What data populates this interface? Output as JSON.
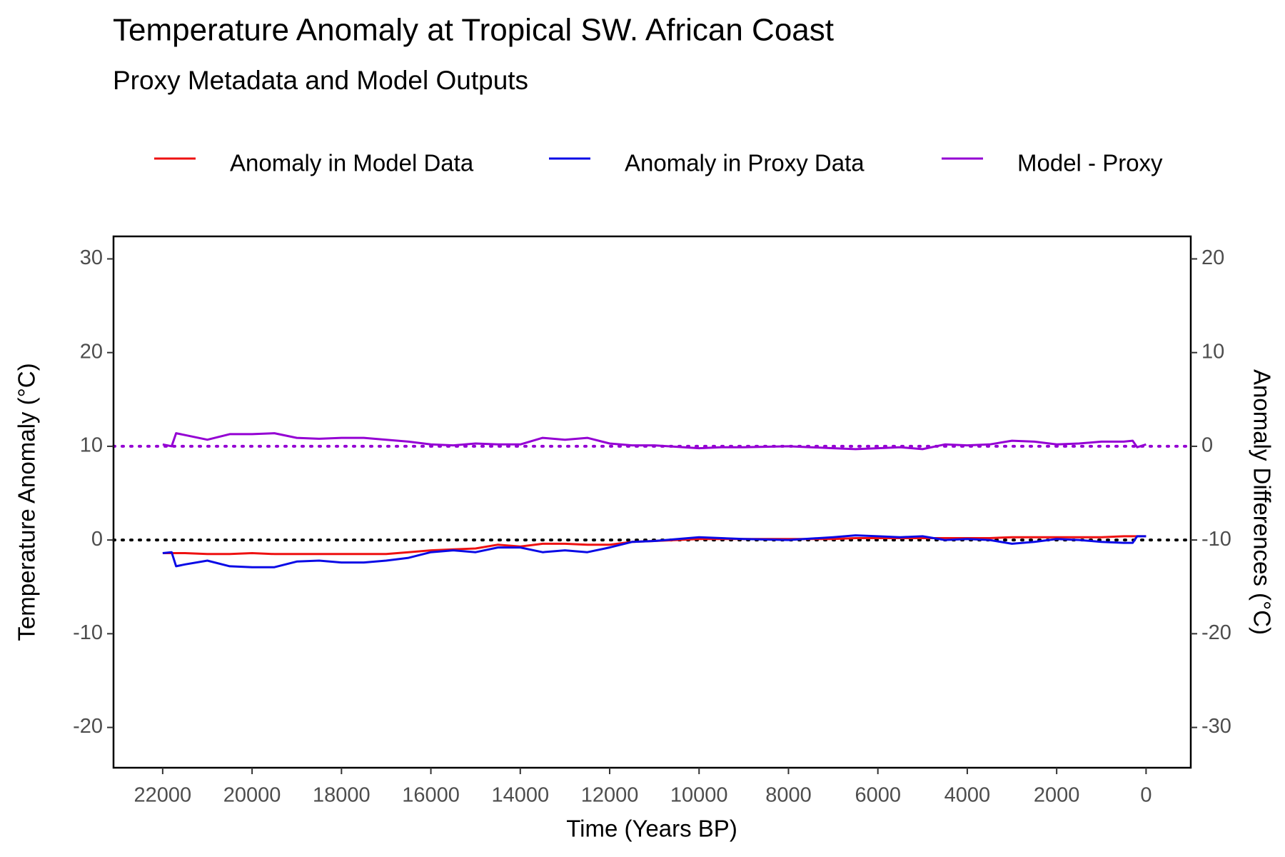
{
  "chart_data": {
    "type": "line",
    "title": "Temperature Anomaly at Tropical SW. African Coast",
    "subtitle": "Proxy Metadata and Model Outputs",
    "x_label": "Time (Years BP)",
    "y_label": "Temperature Anomaly (°C)",
    "y2_label": "Anomaly Differences (°C)",
    "x": [
      22000,
      21800,
      21700,
      21500,
      21000,
      20500,
      20000,
      19500,
      19000,
      18500,
      18000,
      17500,
      17000,
      16500,
      16000,
      15500,
      15000,
      14500,
      14000,
      13500,
      13000,
      12500,
      12000,
      11500,
      11000,
      10000,
      9500,
      9000,
      8000,
      7000,
      6500,
      6000,
      5500,
      5000,
      4500,
      4000,
      3500,
      3000,
      2500,
      2000,
      1500,
      1000,
      500,
      300,
      200,
      0
    ],
    "series": [
      {
        "name": "Anomaly in Model Data",
        "color": "#ee1111",
        "values": [
          -1.4,
          -1.4,
          -1.4,
          -1.4,
          -1.5,
          -1.5,
          -1.4,
          -1.5,
          -1.5,
          -1.5,
          -1.5,
          -1.5,
          -1.5,
          -1.3,
          -1.1,
          -1.0,
          -0.9,
          -0.5,
          -0.7,
          -0.4,
          -0.4,
          -0.5,
          -0.5,
          -0.2,
          -0.1,
          0.1,
          0.1,
          0.1,
          0.1,
          0.1,
          0.2,
          0.2,
          0.2,
          0.2,
          0.2,
          0.2,
          0.2,
          0.3,
          0.3,
          0.3,
          0.3,
          0.3,
          0.4,
          0.4,
          0.4,
          0.4
        ]
      },
      {
        "name": "Anomaly in Proxy Data",
        "color": "#0a0ae6",
        "values": [
          -1.4,
          -1.3,
          -2.8,
          -2.6,
          -2.2,
          -2.8,
          -2.9,
          -2.9,
          -2.3,
          -2.2,
          -2.4,
          -2.4,
          -2.2,
          -1.9,
          -1.3,
          -1.1,
          -1.3,
          -0.8,
          -0.8,
          -1.3,
          -1.1,
          -1.3,
          -0.8,
          -0.2,
          -0.1,
          0.3,
          0.2,
          0.1,
          0.0,
          0.3,
          0.5,
          0.4,
          0.3,
          0.4,
          0.0,
          0.1,
          0.0,
          -0.4,
          -0.2,
          0.1,
          0.0,
          -0.2,
          -0.3,
          -0.3,
          0.4,
          0.4
        ]
      },
      {
        "name": "Model - Proxy",
        "color": "#9400d3",
        "axis": "y2",
        "values": [
          0.2,
          0.0,
          1.4,
          1.2,
          0.7,
          1.3,
          1.3,
          1.4,
          0.9,
          0.8,
          0.9,
          0.9,
          0.7,
          0.5,
          0.2,
          0.1,
          0.3,
          0.2,
          0.2,
          0.9,
          0.7,
          0.9,
          0.3,
          0.1,
          0.1,
          -0.2,
          -0.1,
          -0.1,
          0.0,
          -0.2,
          -0.3,
          -0.2,
          -0.1,
          -0.3,
          0.2,
          0.1,
          0.2,
          0.6,
          0.5,
          0.2,
          0.3,
          0.5,
          0.5,
          0.6,
          -0.1,
          0.2
        ]
      }
    ],
    "reference_lines": [
      {
        "axis": "y",
        "value": 0,
        "color": "#000000"
      },
      {
        "axis": "y2",
        "value": 0,
        "color": "#9400d3"
      }
    ],
    "xlim": [
      23100,
      -1000
    ],
    "xticks": [
      22000,
      20000,
      18000,
      16000,
      14000,
      12000,
      10000,
      8000,
      6000,
      4000,
      2000,
      0
    ],
    "ylim": [
      -24.3,
      32.4
    ],
    "yticks": [
      -20,
      -10,
      0,
      10,
      20,
      30
    ],
    "y2lim": [
      -34.3,
      22.4
    ],
    "y2ticks": [
      -30,
      -20,
      -10,
      0,
      10,
      20
    ],
    "legend": "top",
    "grid": false
  }
}
